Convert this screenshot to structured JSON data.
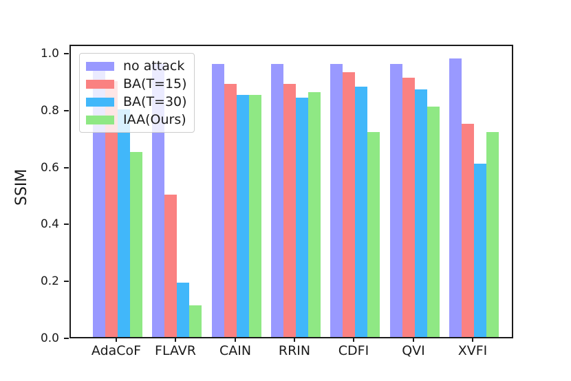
{
  "chart_data": {
    "type": "bar",
    "title": "",
    "xlabel": "",
    "ylabel": "SSIM",
    "categories": [
      "AdaCoF",
      "FLAVR",
      "CAIN",
      "RRIN",
      "CDFI",
      "QVI",
      "XVFI"
    ],
    "series": [
      {
        "name": "no attack",
        "color": "#9999ff",
        "values": [
          0.96,
          0.96,
          0.96,
          0.96,
          0.96,
          0.96,
          0.98
        ]
      },
      {
        "name": "BA(T=15)",
        "color": "#fa8181",
        "values": [
          0.9,
          0.5,
          0.89,
          0.89,
          0.93,
          0.91,
          0.75
        ]
      },
      {
        "name": "BA(T=30)",
        "color": "#41b7fa",
        "values": [
          0.8,
          0.19,
          0.85,
          0.84,
          0.88,
          0.87,
          0.61
        ]
      },
      {
        "name": "IAA(Ours)",
        "color": "#8fe884",
        "values": [
          0.65,
          0.11,
          0.85,
          0.86,
          0.72,
          0.81,
          0.72
        ]
      }
    ],
    "yticks": [
      "0.0",
      "0.2",
      "0.4",
      "0.6",
      "0.8",
      "1.0"
    ],
    "ylim": [
      0,
      1.032
    ],
    "grid": false,
    "legend_position": "upper left",
    "axis_color": "#1a1a1a"
  }
}
